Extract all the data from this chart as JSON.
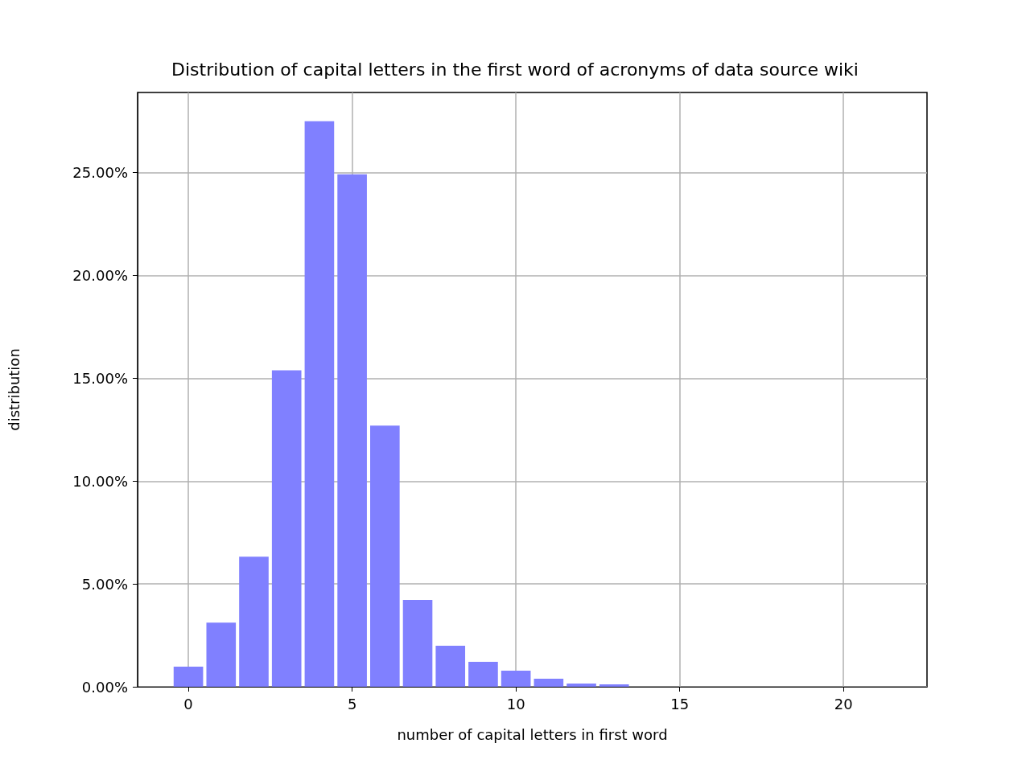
{
  "chart_data": {
    "type": "histogram",
    "title": "Distribution of capital letters in the first word of acronyms of data source wiki",
    "xlabel": "number of capital letters in first word",
    "ylabel": "distribution",
    "bins": [
      -0.5,
      0.5,
      1.5,
      2.5,
      3.5,
      4.5,
      5.5,
      6.5,
      7.5,
      8.5,
      9.5,
      10.5,
      11.5,
      12.5,
      13.5,
      14.5,
      15.5,
      16.5,
      17.5,
      18.5,
      19.5,
      20.5,
      21.5
    ],
    "values": [
      0.98,
      3.12,
      6.33,
      15.39,
      27.5,
      24.92,
      12.7,
      4.22,
      1.99,
      1.21,
      0.78,
      0.39,
      0.16,
      0.12,
      0,
      0,
      0,
      0,
      0,
      0,
      0,
      0
    ],
    "color": "#8080ff",
    "xlim": [
      -1.55,
      22.55
    ],
    "xticks": [
      0,
      5,
      10,
      15,
      20
    ],
    "ylim": [
      0,
      28.9
    ],
    "yticks": [
      {
        "value": 0,
        "label": "0.00%"
      },
      {
        "value": 5,
        "label": "5.00%"
      },
      {
        "value": 10,
        "label": "10.00%"
      },
      {
        "value": 15,
        "label": "15.00%"
      },
      {
        "value": 20,
        "label": "20.00%"
      },
      {
        "value": 25,
        "label": "25.00%"
      }
    ],
    "grid": true
  }
}
